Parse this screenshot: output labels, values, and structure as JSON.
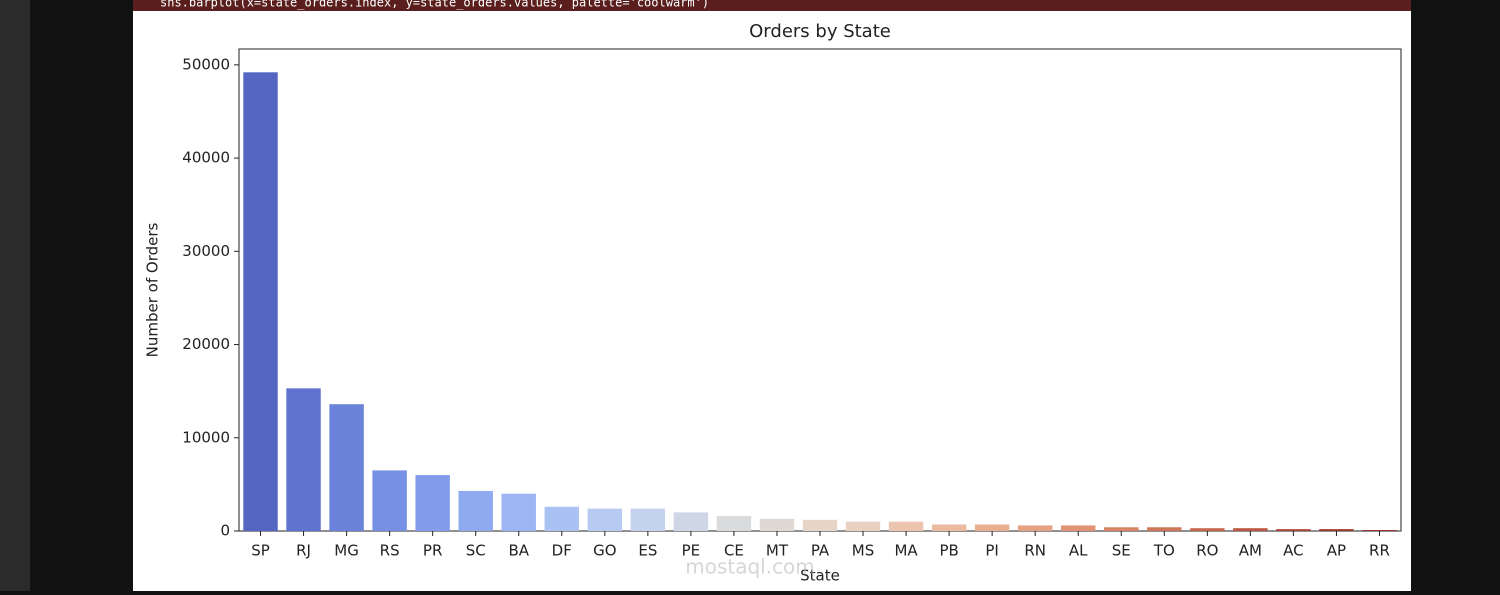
{
  "code": "sns.barplot(x=state_orders.index, y=state_orders.values, palette='coolwarm')",
  "watermark": "mostaql.com",
  "chart_data": {
    "type": "bar",
    "title": "Orders by State",
    "x_label": "State",
    "y_label": "Number of Orders",
    "categories": [
      "SP",
      "RJ",
      "MG",
      "RS",
      "PR",
      "SC",
      "BA",
      "DF",
      "GO",
      "ES",
      "PE",
      "CE",
      "MT",
      "PA",
      "MS",
      "MA",
      "PB",
      "PI",
      "RN",
      "AL",
      "SE",
      "TO",
      "RO",
      "AM",
      "AC",
      "AP",
      "RR"
    ],
    "values": [
      49200,
      15300,
      13600,
      6500,
      6000,
      4300,
      4000,
      2600,
      2400,
      2400,
      2000,
      1600,
      1300,
      1200,
      1000,
      1000,
      700,
      700,
      600,
      600,
      400,
      400,
      300,
      300,
      200,
      200,
      100
    ],
    "colors": [
      "#5565c2",
      "#5f73cf",
      "#6a82da",
      "#7690e3",
      "#839deb",
      "#90aaf0",
      "#9db6f3",
      "#aac1f3",
      "#b7caf1",
      "#c3d2ed",
      "#cfd7e6",
      "#d9dbdd",
      "#e0d9d3",
      "#e6d4c7",
      "#ead0c0",
      "#ecc5b0",
      "#ecbaa0",
      "#eaae91",
      "#e6a182",
      "#e09474",
      "#d88566",
      "#cf7659",
      "#c5664d",
      "#ba5641",
      "#ad4537",
      "#a0352e",
      "#912525"
    ],
    "ylim": [
      0,
      51700
    ],
    "yticks": [
      0,
      10000,
      20000,
      30000,
      40000,
      50000
    ],
    "grid": false
  }
}
